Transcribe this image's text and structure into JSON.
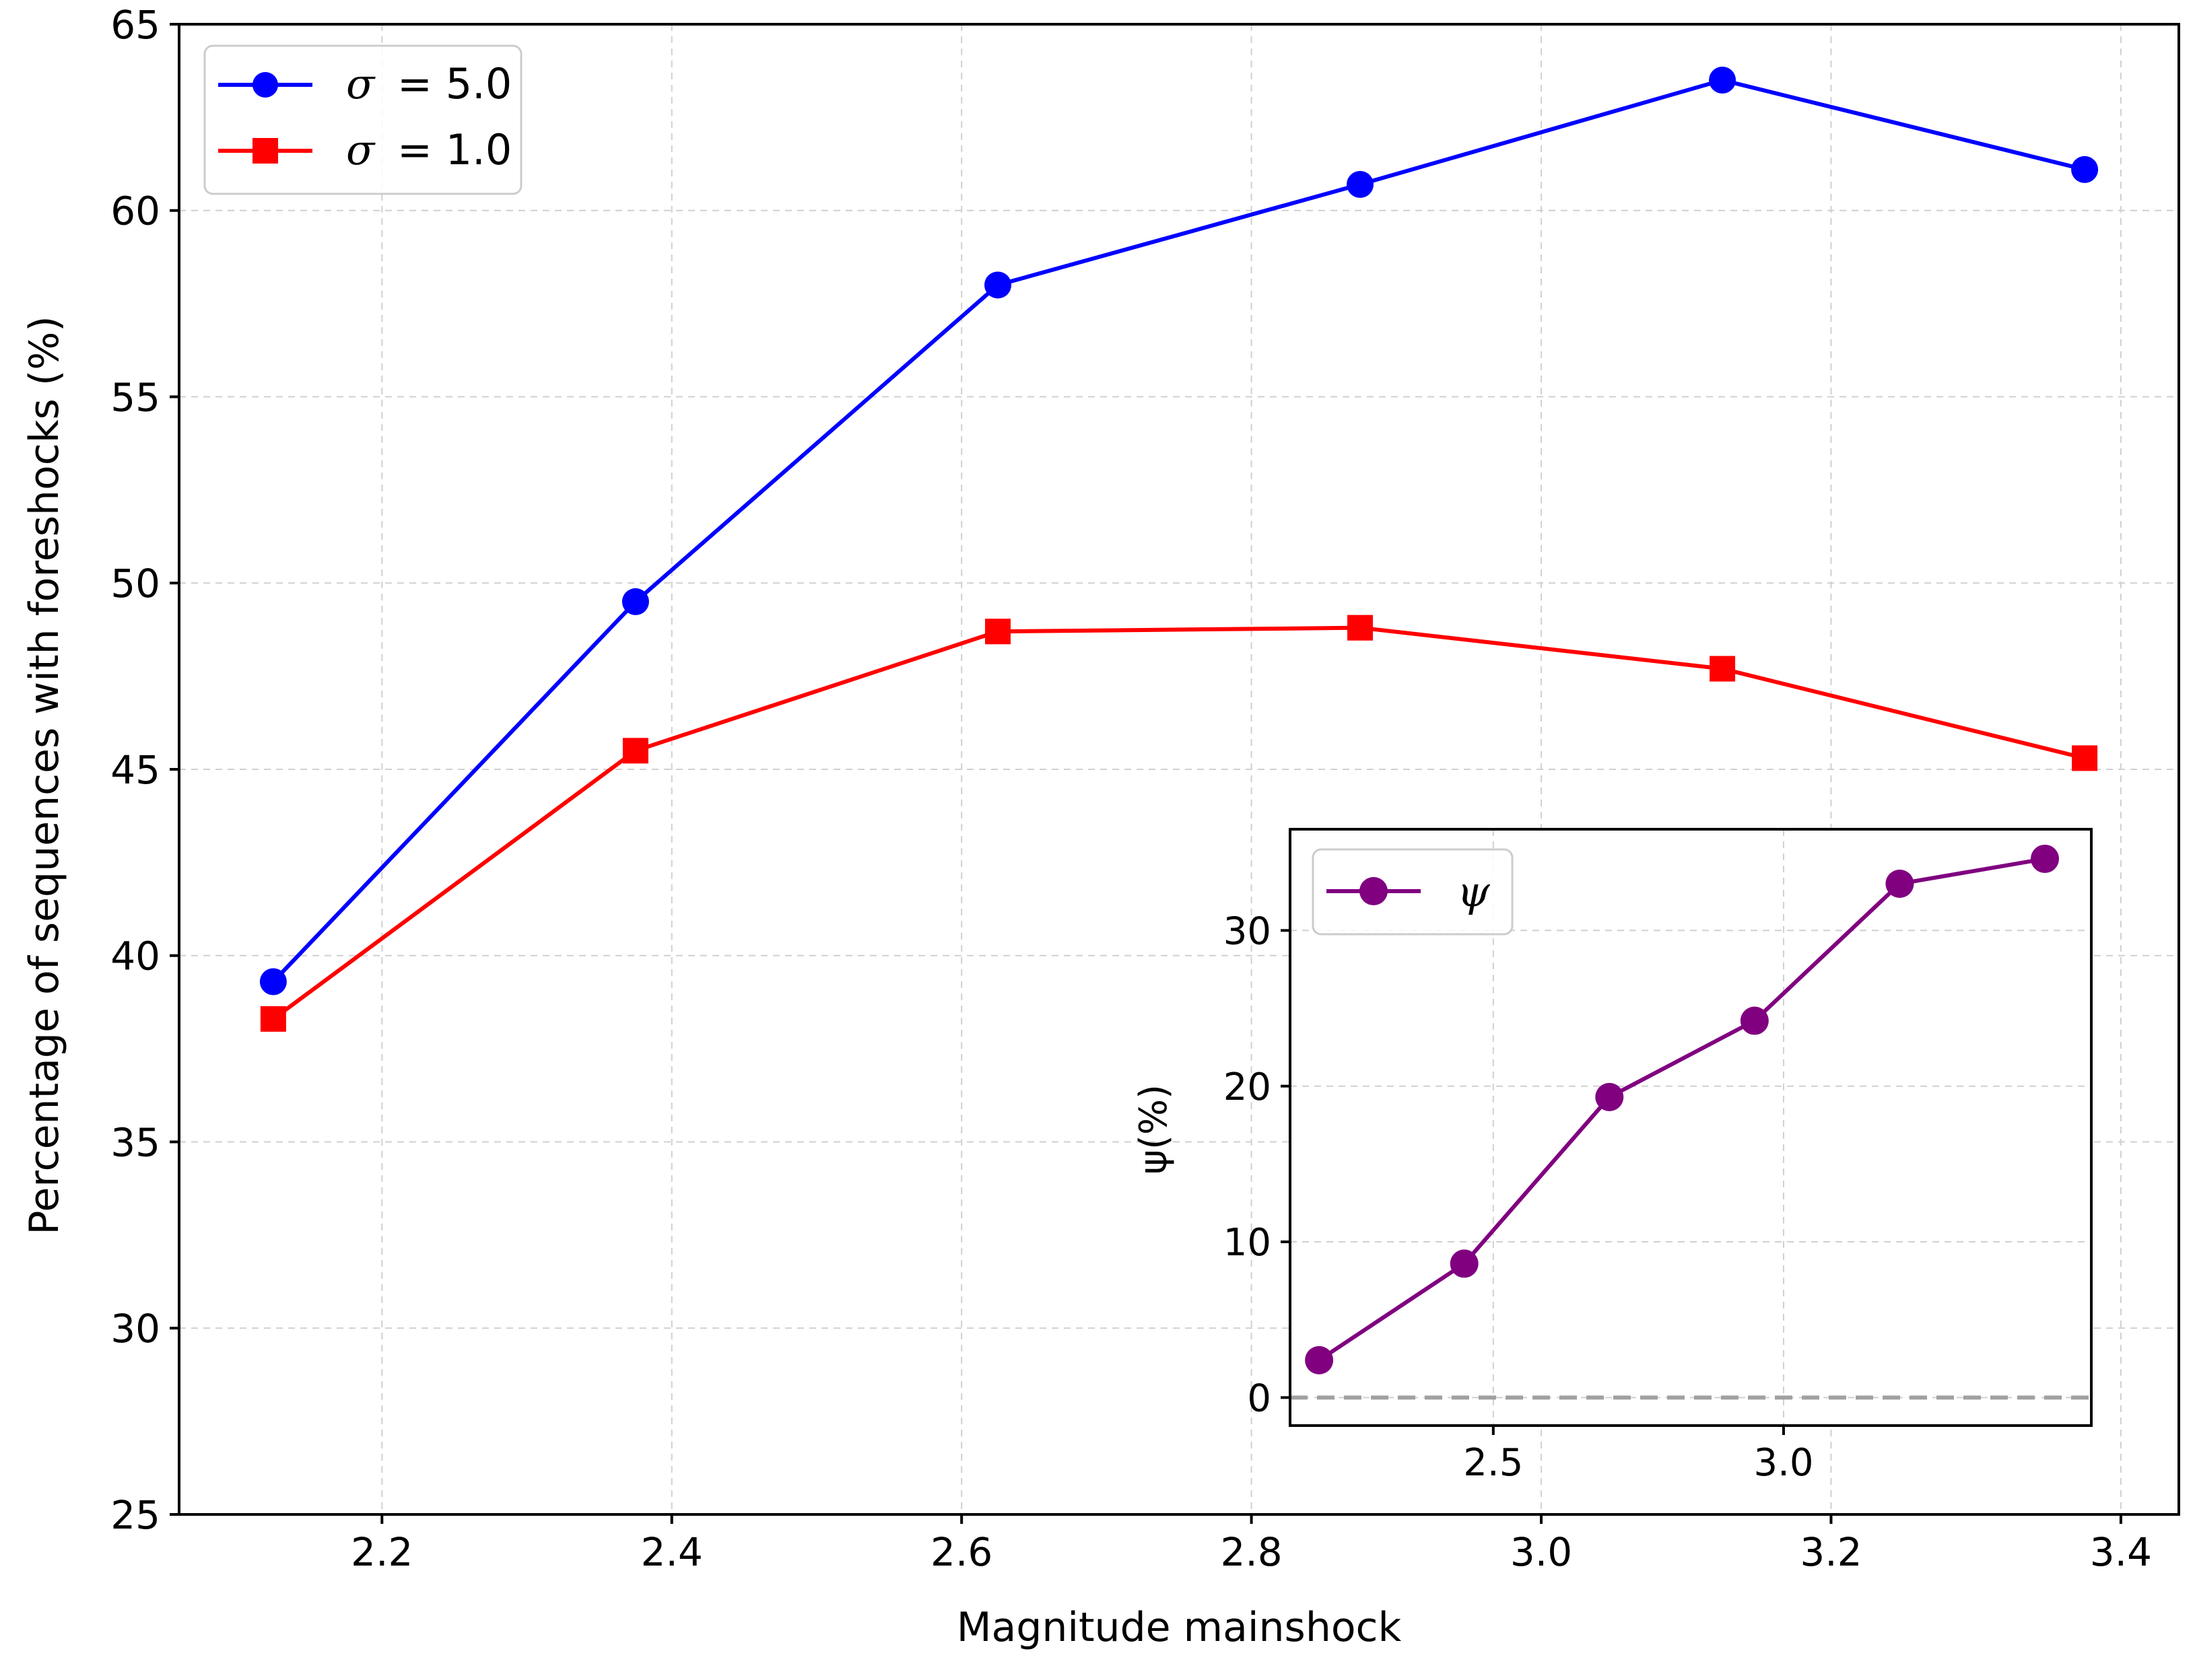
{
  "chart_data": [
    {
      "type": "line",
      "xlabel": "Magnitude mainshock",
      "ylabel": "Percentage of sequences with foreshocks (%)",
      "xlim": [
        2.06,
        3.44
      ],
      "ylim": [
        25,
        65
      ],
      "xticks": [
        2.2,
        2.4,
        2.6,
        2.8,
        3.0,
        3.2,
        3.4
      ],
      "xtick_labels": [
        "2.2",
        "2.4",
        "2.6",
        "2.8",
        "3.0",
        "3.2",
        "3.4"
      ],
      "yticks": [
        25,
        30,
        35,
        40,
        45,
        50,
        55,
        60,
        65
      ],
      "ytick_labels": [
        "25",
        "30",
        "35",
        "40",
        "45",
        "50",
        "55",
        "60",
        "65"
      ],
      "grid": true,
      "legend_position": "top-left",
      "x": [
        2.125,
        2.375,
        2.625,
        2.875,
        3.125,
        3.375
      ],
      "series": [
        {
          "name": "σ = 5.0",
          "legend_symbol": "σ",
          "legend_value": "= 5.0",
          "color": "#0000ff",
          "marker": "circle",
          "values": [
            39.3,
            49.5,
            58.0,
            60.7,
            63.5,
            61.1
          ]
        },
        {
          "name": "σ = 1.0",
          "legend_symbol": "σ",
          "legend_value": "= 1.0",
          "color": "#ff0000",
          "marker": "square",
          "values": [
            38.3,
            45.5,
            48.7,
            48.8,
            47.7,
            45.3
          ]
        }
      ]
    },
    {
      "type": "line",
      "inset": true,
      "xlabel": "",
      "ylabel": "ψ(%)",
      "xlim": [
        2.15,
        3.53
      ],
      "ylim": [
        -1.8,
        36.5
      ],
      "xticks": [
        2.5,
        3.0
      ],
      "xtick_labels": [
        "2.5",
        "3.0"
      ],
      "yticks": [
        0,
        10,
        20,
        30
      ],
      "ytick_labels": [
        "0",
        "10",
        "20",
        "30"
      ],
      "grid": true,
      "legend_position": "top-left",
      "reference_line": {
        "y": 0,
        "color": "#a0a0a0",
        "style": "dashed"
      },
      "x": [
        2.2,
        2.45,
        2.7,
        2.95,
        3.2,
        3.45
      ],
      "series": [
        {
          "name": "ψ",
          "color": "#800080",
          "marker": "circle",
          "values": [
            2.4,
            8.6,
            19.3,
            24.2,
            33.0,
            34.6
          ]
        }
      ]
    }
  ]
}
